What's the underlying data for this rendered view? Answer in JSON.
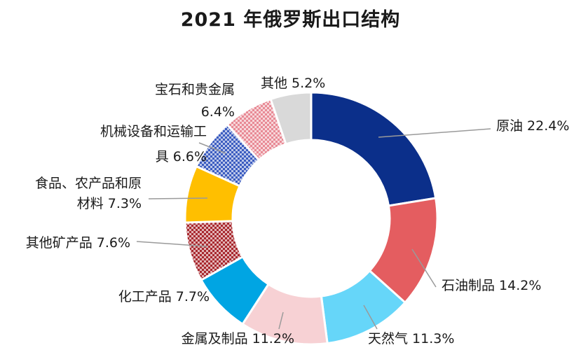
{
  "chart_data": {
    "type": "pie",
    "subtype": "donut",
    "title": "2021 年俄罗斯出口结构",
    "slices": [
      {
        "label": "原油",
        "value": 22.4,
        "value_label": "22.4%",
        "color": "#0b2f8a",
        "fill": "solid"
      },
      {
        "label": "石油制品",
        "value": 14.2,
        "value_label": "14.2%",
        "color": "#e45d60",
        "fill": "solid"
      },
      {
        "label": "天然气",
        "value": 11.3,
        "value_label": "11.3%",
        "color": "#66d6f9",
        "fill": "solid"
      },
      {
        "label": "金属及制品",
        "value": 11.2,
        "value_label": "11.2%",
        "color": "#f7d1d4",
        "fill": "solid"
      },
      {
        "label": "化工产品",
        "value": 7.7,
        "value_label": "7.7%",
        "color": "#00a5e3",
        "fill": "solid"
      },
      {
        "label": "其他矿产品",
        "value": 7.6,
        "value_label": "7.6%",
        "color": "#a8282e",
        "fill": "check"
      },
      {
        "label": "食品、农产品和原材料",
        "value": 7.3,
        "value_label": "7.3%",
        "color": "#ffbf00",
        "fill": "solid"
      },
      {
        "label": "机械设备和运输工具",
        "value": 6.6,
        "value_label": "6.6%",
        "color": "#3b5cc0",
        "fill": "check"
      },
      {
        "label": "宝石和贵金属",
        "value": 6.4,
        "value_label": "6.4%",
        "color": "#e88a95",
        "fill": "check"
      },
      {
        "label": "其他",
        "value": 5.2,
        "value_label": "5.2%",
        "color": "#d9d9d9",
        "fill": "solid"
      }
    ],
    "label_lines": [
      [
        "原油 22.4%"
      ],
      [
        "石油制品 14.2%"
      ],
      [
        "天然气 11.3%"
      ],
      [
        "金属及制品 11.2%"
      ],
      [
        "化工产品 7.7%"
      ],
      [
        "其他矿产品 7.6%"
      ],
      [
        "食品、农产品和原",
        "材料 7.3%"
      ],
      [
        "机械设备和运输工",
        "具 6.6%"
      ],
      [
        "宝石和贵金属",
        "6.4%"
      ],
      [
        "其他 5.2%"
      ]
    ],
    "legend": "none"
  }
}
